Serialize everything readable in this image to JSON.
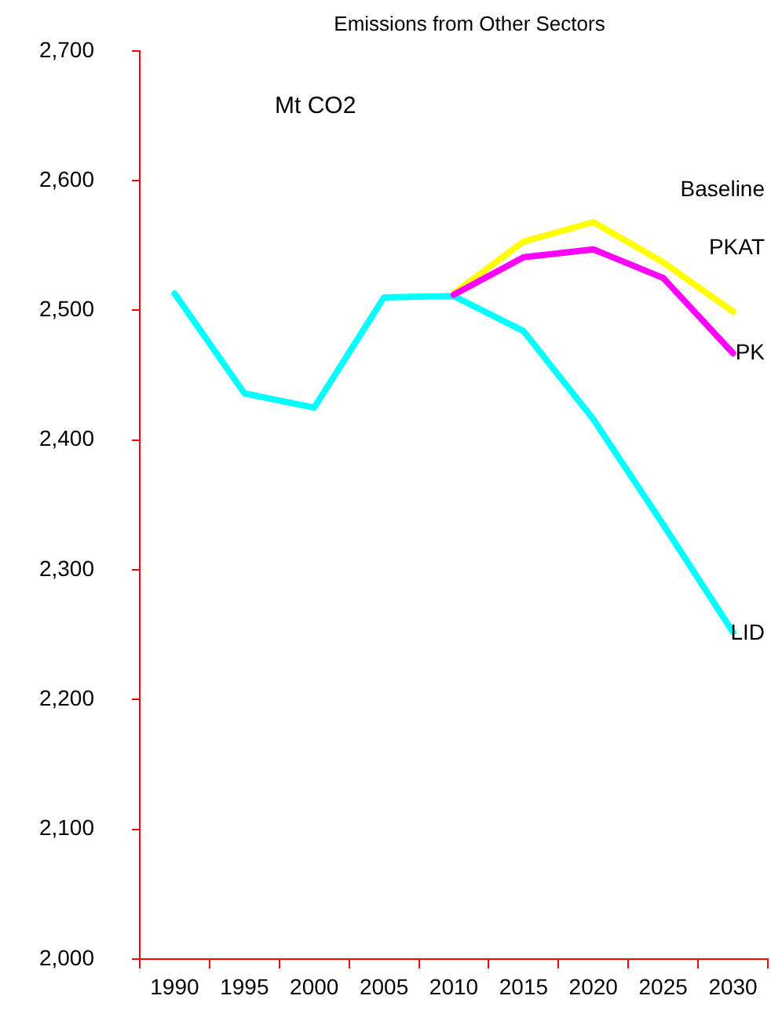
{
  "chart_data": {
    "type": "line",
    "title": "Emissions from Other Sectors",
    "ylabel": "Mt CO2",
    "categories": [
      "1990",
      "1995",
      "2000",
      "2005",
      "2010",
      "2015",
      "2020",
      "2025",
      "2030"
    ],
    "series": [
      {
        "color": "#ff00ff",
        "values": [
          null,
          null,
          null,
          null,
          2512,
          2541,
          2547,
          2525,
          2467
        ]
      },
      {
        "color": "#ffff00",
        "values": [
          null,
          null,
          null,
          null,
          2513,
          2553,
          2568,
          2537,
          2499
        ]
      },
      {
        "color": "#00ffff",
        "values": [
          2513,
          2436,
          2425,
          2510,
          2511,
          2484,
          2416,
          2335,
          2252
        ]
      }
    ],
    "ylim": [
      2000,
      2700
    ],
    "yticks": [
      {
        "value": 2000,
        "label": "2,000"
      },
      {
        "value": 2100,
        "label": "2,100"
      },
      {
        "value": 2200,
        "label": "2,200"
      },
      {
        "value": 2300,
        "label": "2,300"
      },
      {
        "value": 2400,
        "label": "2,400"
      },
      {
        "value": 2500,
        "label": "2,500"
      },
      {
        "value": 2600,
        "label": "2,600"
      },
      {
        "value": 2700,
        "label": "2,700"
      }
    ],
    "grid": false,
    "legend": false,
    "marker": "none",
    "line_style": "solid",
    "annotations": [
      "Baseline",
      "PKAT",
      {
        "text": "PK",
        "x": "2030",
        "y": 2467
      },
      {
        "text": "LID",
        "x": "2030",
        "y": 2251
      }
    ]
  }
}
